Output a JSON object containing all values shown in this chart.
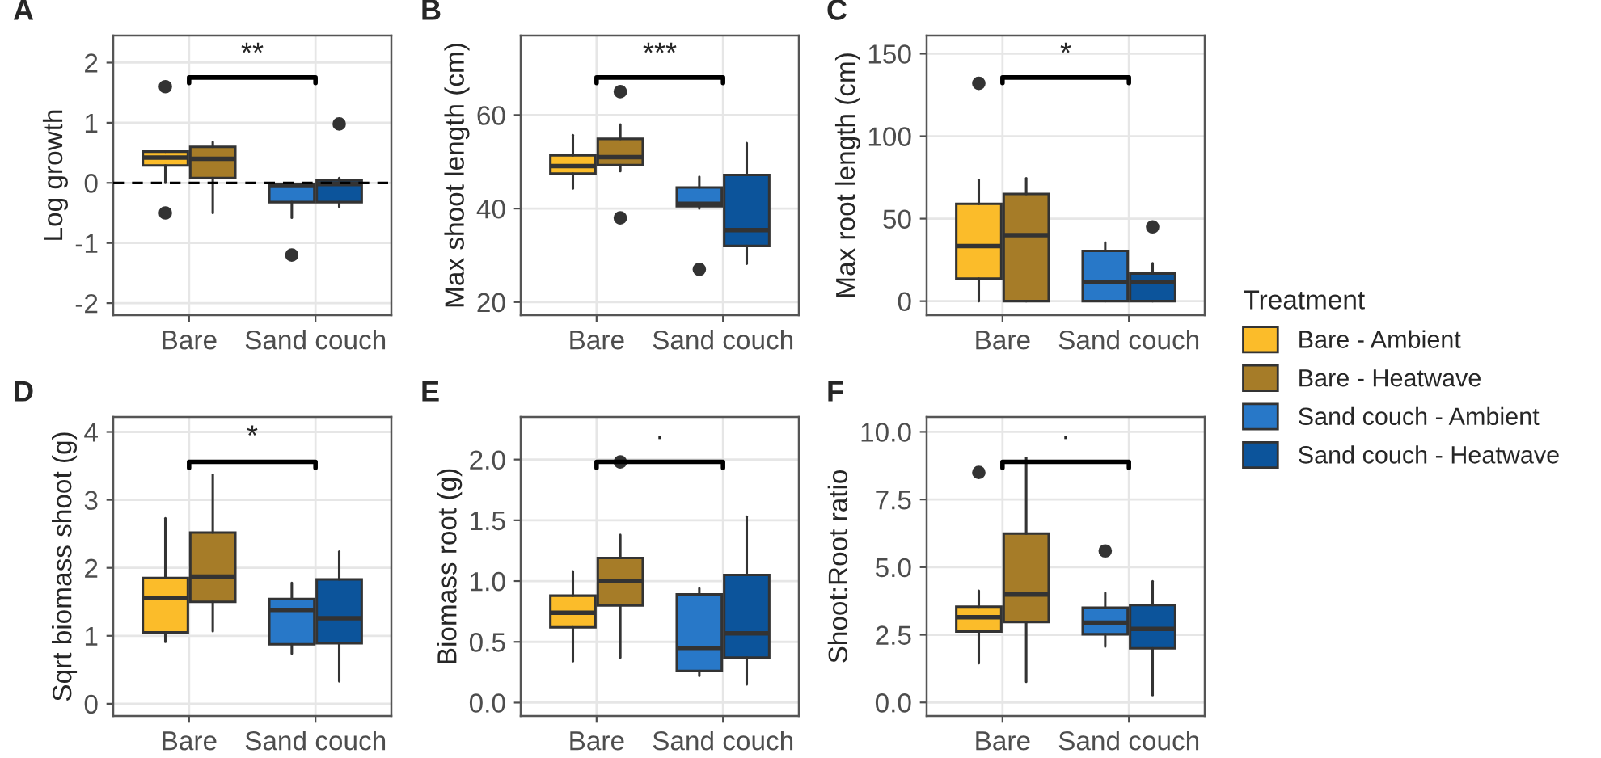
{
  "chart_data": [
    {
      "type": "box",
      "title": "A",
      "ylabel": "Log growth",
      "categories": [
        "Bare",
        "Sand couch"
      ],
      "ylim": [
        -2.2,
        2.45
      ],
      "yticks": [
        -2,
        -1,
        0,
        1,
        2
      ],
      "grid": true,
      "annotations": [
        "**"
      ],
      "ref_lines": [
        {
          "axis": "y",
          "value": 0,
          "line_style": "dashed"
        }
      ],
      "series": [
        {
          "color": "#fbbc2a",
          "boxes": [
            {
              "low": 0.0,
              "q1": 0.29,
              "median": 0.42,
              "q3": 0.52,
              "high": 0.52,
              "outliers": [
                1.6,
                -0.5
              ]
            },
            null
          ]
        },
        {
          "color": "#a67c28",
          "boxes": [
            {
              "low": -0.5,
              "q1": 0.08,
              "median": 0.4,
              "q3": 0.6,
              "high": 0.68
            },
            null
          ]
        },
        {
          "color": "#2878c8",
          "boxes": [
            null,
            {
              "low": -0.58,
              "q1": -0.32,
              "median": -0.05,
              "q3": -0.02,
              "high": -0.02,
              "outliers": [
                -1.2
              ]
            }
          ]
        },
        {
          "color": "#0c549b",
          "boxes": [
            null,
            {
              "low": -0.4,
              "q1": -0.32,
              "median": -0.02,
              "q3": 0.04,
              "high": 0.08,
              "outliers": [
                0.98
              ]
            }
          ]
        }
      ]
    },
    {
      "type": "box",
      "title": "B",
      "ylabel": "Max shoot length (cm)",
      "categories": [
        "Bare",
        "Sand couch"
      ],
      "ylim": [
        17.2,
        77
      ],
      "yticks": [
        20,
        40,
        60
      ],
      "grid": true,
      "annotations": [
        "***"
      ],
      "series": [
        {
          "color": "#fbbc2a",
          "boxes": [
            {
              "low": 44.3,
              "q1": 47.5,
              "median": 49.1,
              "q3": 51.4,
              "high": 55.7
            },
            null
          ]
        },
        {
          "color": "#a67c28",
          "boxes": [
            {
              "low": 48,
              "q1": 49.3,
              "median": 51,
              "q3": 54.9,
              "high": 58,
              "outliers": [
                65,
                38
              ]
            },
            null
          ]
        },
        {
          "color": "#2878c8",
          "boxes": [
            null,
            {
              "low": 40,
              "q1": 40.5,
              "median": 41,
              "q3": 44.5,
              "high": 46.8,
              "outliers": [
                27
              ]
            }
          ]
        },
        {
          "color": "#0c549b",
          "boxes": [
            null,
            {
              "low": 28.2,
              "q1": 32,
              "median": 35.4,
              "q3": 47.2,
              "high": 54
            }
          ]
        }
      ]
    },
    {
      "type": "box",
      "title": "C",
      "ylabel": "Max root length (cm)",
      "categories": [
        "Bare",
        "Sand couch"
      ],
      "ylim": [
        -8.5,
        161
      ],
      "yticks": [
        0,
        50,
        100,
        150
      ],
      "grid": true,
      "annotations": [
        "*"
      ],
      "legend": "right",
      "legend_title": "Treatment",
      "series": [
        {
          "name": "Bare - Ambient",
          "color": "#fbbc2a",
          "boxes": [
            {
              "low": 0,
              "q1": 13.7,
              "median": 33.4,
              "q3": 59,
              "high": 73.6,
              "outliers": [
                132
              ]
            },
            null
          ]
        },
        {
          "name": "Bare - Heatwave",
          "color": "#a67c28",
          "boxes": [
            {
              "low": 0,
              "q1": 0,
              "median": 40,
              "q3": 65,
              "high": 74.5
            },
            null
          ]
        },
        {
          "name": "Sand couch - Ambient",
          "color": "#2878c8",
          "boxes": [
            null,
            {
              "low": 0,
              "q1": 0,
              "median": 11.5,
              "q3": 30.4,
              "high": 35.6
            }
          ]
        },
        {
          "name": "Sand couch - Heatwave",
          "color": "#0c549b",
          "boxes": [
            null,
            {
              "low": 0,
              "q1": 0,
              "median": 11.5,
              "q3": 16.7,
              "high": 23,
              "outliers": [
                45
              ]
            }
          ]
        }
      ]
    },
    {
      "type": "box",
      "title": "D",
      "ylabel": "Sqrt biomass shoot (g)",
      "categories": [
        "Bare",
        "Sand couch"
      ],
      "ylim": [
        -0.18,
        4.22
      ],
      "yticks": [
        0,
        1,
        2,
        3,
        4
      ],
      "grid": true,
      "annotations": [
        "*"
      ],
      "series": [
        {
          "color": "#fbbc2a",
          "boxes": [
            {
              "low": 0.91,
              "q1": 1.05,
              "median": 1.56,
              "q3": 1.85,
              "high": 2.73
            },
            null
          ]
        },
        {
          "color": "#a67c28",
          "boxes": [
            {
              "low": 1.07,
              "q1": 1.5,
              "median": 1.87,
              "q3": 2.52,
              "high": 3.37
            },
            null
          ]
        },
        {
          "color": "#2878c8",
          "boxes": [
            null,
            {
              "low": 0.74,
              "q1": 0.875,
              "median": 1.38,
              "q3": 1.54,
              "high": 1.78
            }
          ]
        },
        {
          "color": "#0c549b",
          "boxes": [
            null,
            {
              "low": 0.33,
              "q1": 0.89,
              "median": 1.26,
              "q3": 1.83,
              "high": 2.24
            }
          ]
        }
      ]
    },
    {
      "type": "box",
      "title": "E",
      "ylabel": "Biomass root (g)",
      "categories": [
        "Bare",
        "Sand couch"
      ],
      "ylim": [
        -0.11,
        2.35
      ],
      "yticks": [
        {
          "value": 0,
          "label": "0.0"
        },
        {
          "value": 0.5,
          "label": "0.5"
        },
        {
          "value": 1,
          "label": "1.0"
        },
        {
          "value": 1.5,
          "label": "1.5"
        },
        {
          "value": 2,
          "label": "2.0"
        }
      ],
      "grid": true,
      "annotations": [
        "·"
      ],
      "series": [
        {
          "color": "#fbbc2a",
          "boxes": [
            {
              "low": 0.34,
              "q1": 0.62,
              "median": 0.74,
              "q3": 0.88,
              "high": 1.08
            },
            null
          ]
        },
        {
          "color": "#a67c28",
          "boxes": [
            {
              "low": 0.37,
              "q1": 0.8,
              "median": 1.0,
              "q3": 1.19,
              "high": 1.38,
              "outliers": [
                1.98
              ]
            },
            null
          ]
        },
        {
          "color": "#2878c8",
          "boxes": [
            null,
            {
              "low": 0.22,
              "q1": 0.26,
              "median": 0.45,
              "q3": 0.89,
              "high": 0.94
            }
          ]
        },
        {
          "color": "#0c549b",
          "boxes": [
            null,
            {
              "low": 0.15,
              "q1": 0.37,
              "median": 0.57,
              "q3": 1.05,
              "high": 1.53
            }
          ]
        }
      ]
    },
    {
      "type": "box",
      "title": "F",
      "ylabel": "Shoot:Root ratio",
      "categories": [
        "Bare",
        "Sand couch"
      ],
      "ylim": [
        -0.5,
        10.55
      ],
      "yticks": [
        {
          "value": 0,
          "label": "0.0"
        },
        {
          "value": 2.5,
          "label": "2.5"
        },
        {
          "value": 5,
          "label": "5.0"
        },
        {
          "value": 7.5,
          "label": "7.5"
        },
        {
          "value": 10,
          "label": "10.0"
        }
      ],
      "grid": true,
      "annotations": [
        "·"
      ],
      "series": [
        {
          "color": "#fbbc2a",
          "boxes": [
            {
              "low": 1.45,
              "q1": 2.62,
              "median": 3.15,
              "q3": 3.54,
              "high": 4.13,
              "outliers": [
                8.5
              ]
            },
            null
          ]
        },
        {
          "color": "#a67c28",
          "boxes": [
            {
              "low": 0.76,
              "q1": 2.97,
              "median": 3.99,
              "q3": 6.24,
              "high": 9.04
            },
            null
          ]
        },
        {
          "color": "#2878c8",
          "boxes": [
            null,
            {
              "low": 2.07,
              "q1": 2.52,
              "median": 2.95,
              "q3": 3.5,
              "high": 4.05,
              "outliers": [
                5.6
              ]
            }
          ]
        },
        {
          "color": "#0c549b",
          "boxes": [
            null,
            {
              "low": 0.27,
              "q1": 2.0,
              "median": 2.72,
              "q3": 3.6,
              "high": 4.48
            }
          ]
        }
      ]
    }
  ]
}
